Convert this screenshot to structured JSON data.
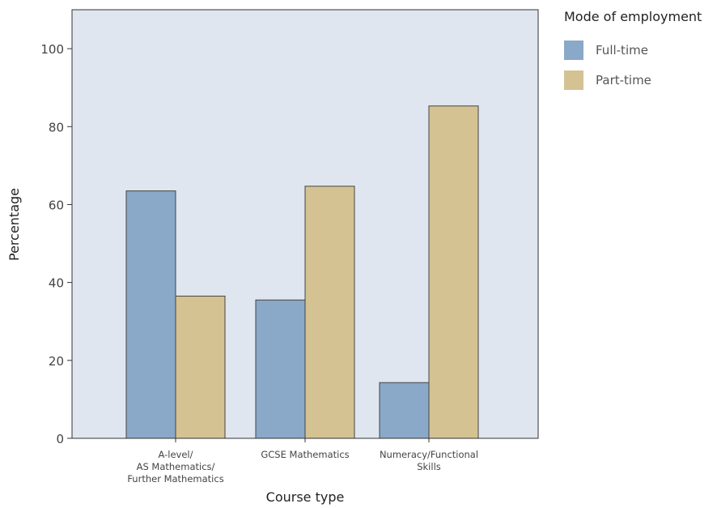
{
  "chart_data": {
    "type": "bar",
    "xlabel": "Course type",
    "ylabel": "Percentage",
    "ylim": [
      0,
      110
    ],
    "yticks": [
      0,
      20,
      40,
      60,
      80,
      100
    ],
    "grid": false,
    "background_color": "#dfe6ef",
    "categories": [
      [
        "A-level/",
        "AS Mathematics/",
        "Further Mathematics"
      ],
      [
        "GCSE Mathematics"
      ],
      [
        "Numeracy/Functional",
        "Skills"
      ]
    ],
    "series": [
      {
        "name": "Full-time",
        "color": "#8aa8c8",
        "values": [
          63.5,
          35.5,
          14.3
        ]
      },
      {
        "name": "Part-time",
        "color": "#d4c292",
        "values": [
          36.5,
          64.7,
          85.3
        ]
      }
    ],
    "legend": {
      "title": "Mode of employment",
      "position": "right-top"
    }
  }
}
